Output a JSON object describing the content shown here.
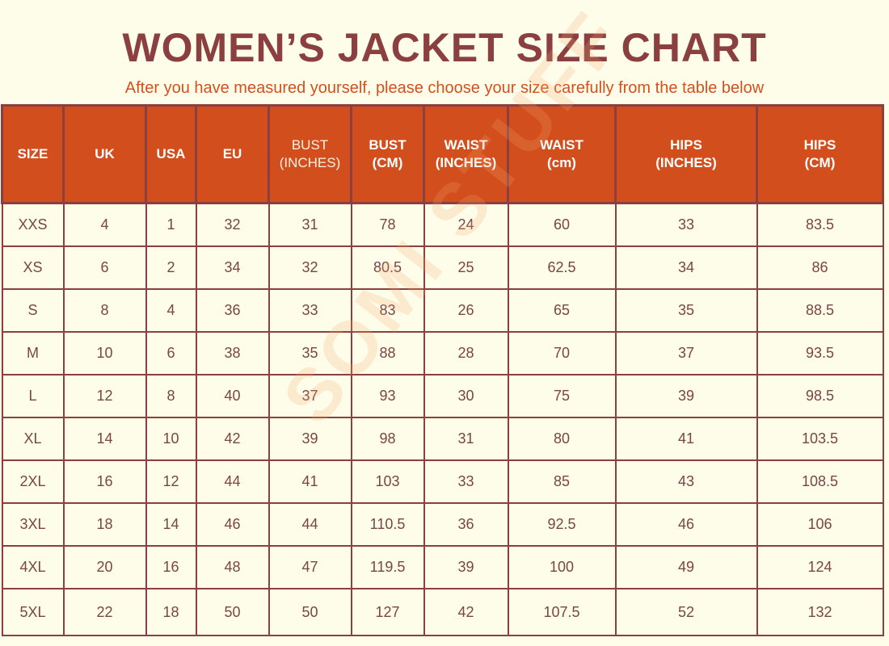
{
  "header": {
    "title": "WOMEN’S JACKET SIZE CHART",
    "subtitle": "After you have measured yourself, please choose your size carefully from the table below"
  },
  "watermark": "SOMI STUFF",
  "table": {
    "columns": [
      {
        "line1": "SIZE",
        "line2": ""
      },
      {
        "line1": "UK",
        "line2": ""
      },
      {
        "line1": "USA",
        "line2": ""
      },
      {
        "line1": "EU",
        "line2": ""
      },
      {
        "line1": "BUST",
        "line2": "(INCHES)"
      },
      {
        "line1": "BUST",
        "line2": "(CM)"
      },
      {
        "line1": "WAIST",
        "line2": "(INCHES)"
      },
      {
        "line1": "WAIST",
        "line2": "(cm)"
      },
      {
        "line1": "HIPS",
        "line2": "(INCHES)"
      },
      {
        "line1": "HIPS",
        "line2": "(CM)"
      }
    ],
    "rows": [
      [
        "XXS",
        "4",
        "1",
        "32",
        "31",
        "78",
        "24",
        "60",
        "33",
        "83.5"
      ],
      [
        "XS",
        "6",
        "2",
        "34",
        "32",
        "80.5",
        "25",
        "62.5",
        "34",
        "86"
      ],
      [
        "S",
        "8",
        "4",
        "36",
        "33",
        "83",
        "26",
        "65",
        "35",
        "88.5"
      ],
      [
        "M",
        "10",
        "6",
        "38",
        "35",
        "88",
        "28",
        "70",
        "37",
        "93.5"
      ],
      [
        "L",
        "12",
        "8",
        "40",
        "37",
        "93",
        "30",
        "75",
        "39",
        "98.5"
      ],
      [
        "XL",
        "14",
        "10",
        "42",
        "39",
        "98",
        "31",
        "80",
        "41",
        "103.5"
      ],
      [
        "2XL",
        "16",
        "12",
        "44",
        "41",
        "103",
        "33",
        "85",
        "43",
        "108.5"
      ],
      [
        "3XL",
        "18",
        "14",
        "46",
        "44",
        "110.5",
        "36",
        "92.5",
        "46",
        "106"
      ],
      [
        "4XL",
        "20",
        "16",
        "48",
        "47",
        "119.5",
        "39",
        "100",
        "49",
        "124"
      ],
      [
        "5XL",
        "22",
        "18",
        "50",
        "50",
        "127",
        "42",
        "107.5",
        "52",
        "132"
      ]
    ]
  }
}
